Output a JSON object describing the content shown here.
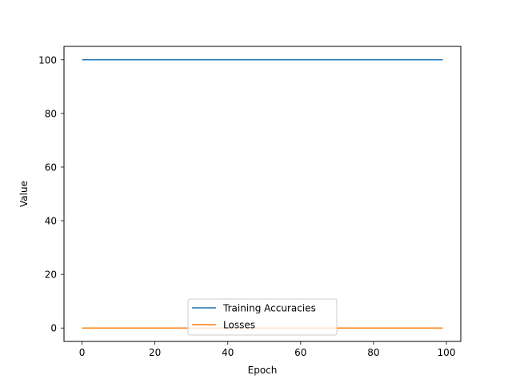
{
  "chart_data": {
    "type": "line",
    "title": "",
    "xlabel": "Epoch",
    "ylabel": "Value",
    "xlim": [
      -4.95,
      103.95
    ],
    "ylim": [
      -5,
      105
    ],
    "xticks": [
      0,
      20,
      40,
      60,
      80,
      100
    ],
    "yticks": [
      0,
      20,
      40,
      60,
      80,
      100
    ],
    "grid": false,
    "legend_position": "lower-center",
    "x": {
      "start": 0,
      "end": 99,
      "step": 1
    },
    "series": [
      {
        "name": "Training Accuracies",
        "color": "#1f77b4",
        "values": [
          100,
          100,
          100,
          100,
          100,
          100,
          100,
          100,
          100,
          100,
          100,
          100,
          100,
          100,
          100,
          100,
          100,
          100,
          100,
          100,
          100,
          100,
          100,
          100,
          100,
          100,
          100,
          100,
          100,
          100,
          100,
          100,
          100,
          100,
          100,
          100,
          100,
          100,
          100,
          100,
          100,
          100,
          100,
          100,
          100,
          100,
          100,
          100,
          100,
          100,
          100,
          100,
          100,
          100,
          100,
          100,
          100,
          100,
          100,
          100,
          100,
          100,
          100,
          100,
          100,
          100,
          100,
          100,
          100,
          100,
          100,
          100,
          100,
          100,
          100,
          100,
          100,
          100,
          100,
          100,
          100,
          100,
          100,
          100,
          100,
          100,
          100,
          100,
          100,
          100,
          100,
          100,
          100,
          100,
          100,
          100,
          100,
          100,
          100,
          100
        ]
      },
      {
        "name": "Losses",
        "color": "#ff7f0e",
        "values": [
          0,
          0,
          0,
          0,
          0,
          0,
          0,
          0,
          0,
          0,
          0,
          0,
          0,
          0,
          0,
          0,
          0,
          0,
          0,
          0,
          0,
          0,
          0,
          0,
          0,
          0,
          0,
          0,
          0,
          0,
          0,
          0,
          0,
          0,
          0,
          0,
          0,
          0,
          0,
          0,
          0,
          0,
          0,
          0,
          0,
          0,
          0,
          0,
          0,
          0,
          0,
          0,
          0,
          0,
          0,
          0,
          0,
          0,
          0,
          0,
          0,
          0,
          0,
          0,
          0,
          0,
          0,
          0,
          0,
          0,
          0,
          0,
          0,
          0,
          0,
          0,
          0,
          0,
          0,
          0,
          0,
          0,
          0,
          0,
          0,
          0,
          0,
          0,
          0,
          0,
          0,
          0,
          0,
          0,
          0,
          0,
          0,
          0,
          0,
          0
        ]
      }
    ]
  }
}
